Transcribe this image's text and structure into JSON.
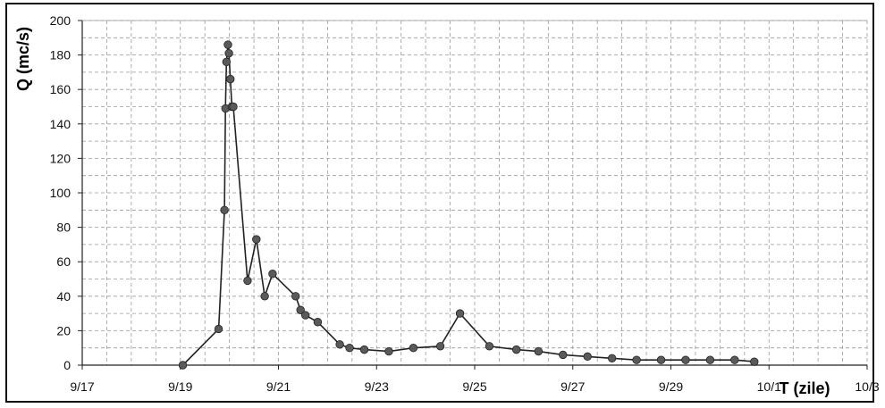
{
  "chart_data": {
    "type": "line",
    "xlabel": "T (zile)",
    "ylabel": "Q (mc/s)",
    "ylim": [
      0,
      200
    ],
    "yticks": [
      0,
      20,
      40,
      60,
      80,
      100,
      120,
      140,
      160,
      180,
      200
    ],
    "xlim": [
      "9/17",
      "10/3"
    ],
    "xticks": [
      "9/17",
      "9/19",
      "9/21",
      "9/23",
      "9/25",
      "9/27",
      "9/29",
      "10/1",
      "10/3"
    ],
    "grid": true,
    "legend": "none",
    "series": [
      {
        "color": "#222222",
        "x": [
          2.05,
          2.78,
          2.9,
          2.92,
          2.94,
          2.97,
          2.99,
          3.02,
          3.05,
          3.08,
          3.37,
          3.55,
          3.72,
          3.88,
          4.35,
          4.45,
          4.55,
          4.8,
          5.25,
          5.45,
          5.75,
          6.25,
          6.75,
          7.3,
          7.7,
          8.3,
          8.85,
          9.3,
          9.8,
          10.3,
          10.8,
          11.3,
          11.8,
          12.3,
          12.8,
          13.3,
          13.7
        ],
        "values": [
          0,
          21,
          90,
          149,
          176,
          186,
          181,
          166,
          150,
          150,
          49,
          73,
          40,
          53,
          40,
          32,
          29,
          25,
          12,
          10,
          9,
          8,
          10,
          11,
          30,
          11,
          9,
          8,
          6,
          5,
          4,
          3,
          3,
          3,
          3,
          3,
          2
        ]
      }
    ]
  }
}
